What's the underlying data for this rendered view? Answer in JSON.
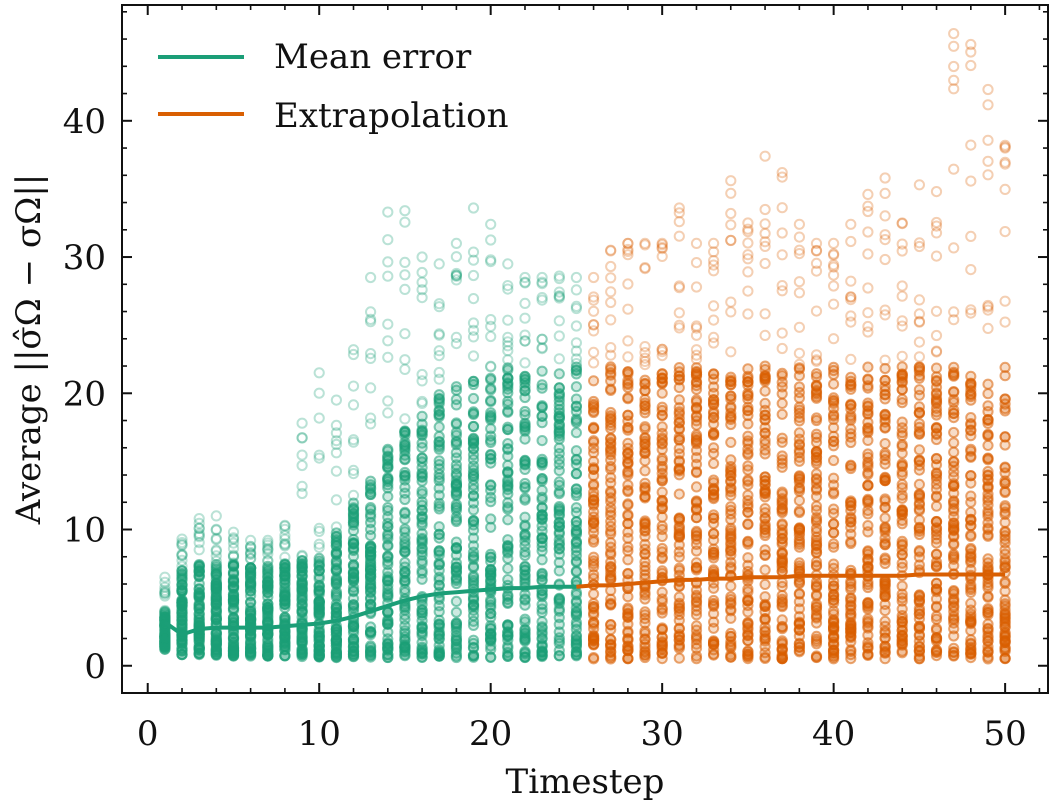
{
  "chart_data": {
    "type": "scatter",
    "xlabel": "Timestep",
    "ylabel": "Average ||σ̂Ω − σΩ||",
    "xlim": [
      -1.5,
      52.5
    ],
    "ylim": [
      -2.0,
      48.5
    ],
    "xticks": [
      0,
      10,
      20,
      30,
      40,
      50
    ],
    "yticks": [
      0,
      10,
      20,
      30,
      40
    ],
    "x_tick_labels": [
      "0",
      "10",
      "20",
      "30",
      "40",
      "50"
    ],
    "y_tick_labels": [
      "0",
      "10",
      "20",
      "30",
      "40"
    ],
    "grid": false,
    "legend_position": "top-left",
    "colors": {
      "mean_error": "#1b9e77",
      "extrapolation": "#d95f02"
    },
    "series": [
      {
        "name": "Mean error",
        "color": "#1b9e77",
        "timesteps": [
          1,
          2,
          3,
          4,
          5,
          6,
          7,
          8,
          9,
          10,
          11,
          12,
          13,
          14,
          15,
          16,
          17,
          18,
          19,
          20,
          21,
          22,
          23,
          24,
          25
        ],
        "dense_min": [
          1.2,
          0.8,
          0.8,
          0.7,
          0.7,
          0.7,
          0.7,
          0.7,
          0.6,
          0.6,
          0.6,
          0.6,
          0.6,
          0.6,
          0.6,
          0.6,
          0.6,
          0.6,
          0.6,
          0.6,
          0.6,
          0.6,
          0.6,
          0.6,
          0.6
        ],
        "dense_max": [
          4.0,
          7.0,
          7.5,
          7.5,
          7.5,
          7.5,
          7.5,
          7.5,
          8.0,
          8.5,
          10.0,
          12.0,
          14.0,
          16.5,
          18.0,
          19.0,
          20.0,
          20.5,
          21.0,
          21.5,
          22.0,
          22.0,
          22.0,
          22.0,
          22.0
        ],
        "outlier_max": [
          6.5,
          9.3,
          10.8,
          11.0,
          9.8,
          9.2,
          9.2,
          10.3,
          17.8,
          21.5,
          19.5,
          23.2,
          28.5,
          33.3,
          33.4,
          30.0,
          29.5,
          31.0,
          33.6,
          32.4,
          29.5,
          28.5,
          28.5,
          28.6,
          28.5
        ],
        "mean_line": [
          3.2,
          2.3,
          2.7,
          2.8,
          2.8,
          2.8,
          2.8,
          2.9,
          3.0,
          3.1,
          3.3,
          3.6,
          4.0,
          4.4,
          4.8,
          5.1,
          5.3,
          5.4,
          5.5,
          5.6,
          5.7,
          5.7,
          5.8,
          5.8,
          5.8
        ]
      },
      {
        "name": "Extrapolation",
        "color": "#d95f02",
        "timesteps": [
          26,
          27,
          28,
          29,
          30,
          31,
          32,
          33,
          34,
          35,
          36,
          37,
          38,
          39,
          40,
          41,
          42,
          43,
          44,
          45,
          46,
          47,
          48,
          49,
          50
        ],
        "dense_min": [
          0.5,
          0.5,
          0.5,
          0.5,
          0.5,
          0.5,
          0.5,
          0.5,
          0.5,
          0.5,
          0.5,
          0.5,
          0.5,
          0.5,
          0.5,
          0.5,
          0.5,
          0.5,
          0.5,
          0.5,
          0.5,
          0.5,
          0.5,
          0.5,
          0.5
        ],
        "dense_max": [
          22.0,
          22.0,
          22.0,
          22.0,
          22.0,
          22.0,
          22.0,
          22.0,
          22.0,
          22.0,
          22.0,
          22.0,
          22.0,
          22.0,
          22.0,
          22.0,
          22.0,
          22.0,
          22.0,
          22.0,
          22.0,
          22.0,
          22.0,
          22.0,
          22.0
        ],
        "outlier_max": [
          28.5,
          30.5,
          31.0,
          31.0,
          31.0,
          33.6,
          31.0,
          31.0,
          35.6,
          32.5,
          37.4,
          36.2,
          32.4,
          31.0,
          31.0,
          32.4,
          34.6,
          35.8,
          32.5,
          35.3,
          34.8,
          46.4,
          45.6,
          42.3,
          38.2
        ],
        "mean_line": [
          5.9,
          5.9,
          6.0,
          6.1,
          6.2,
          6.3,
          6.3,
          6.4,
          6.4,
          6.5,
          6.5,
          6.5,
          6.6,
          6.6,
          6.6,
          6.6,
          6.6,
          6.6,
          6.6,
          6.7,
          6.7,
          6.7,
          6.7,
          6.7,
          6.7
        ]
      }
    ]
  }
}
